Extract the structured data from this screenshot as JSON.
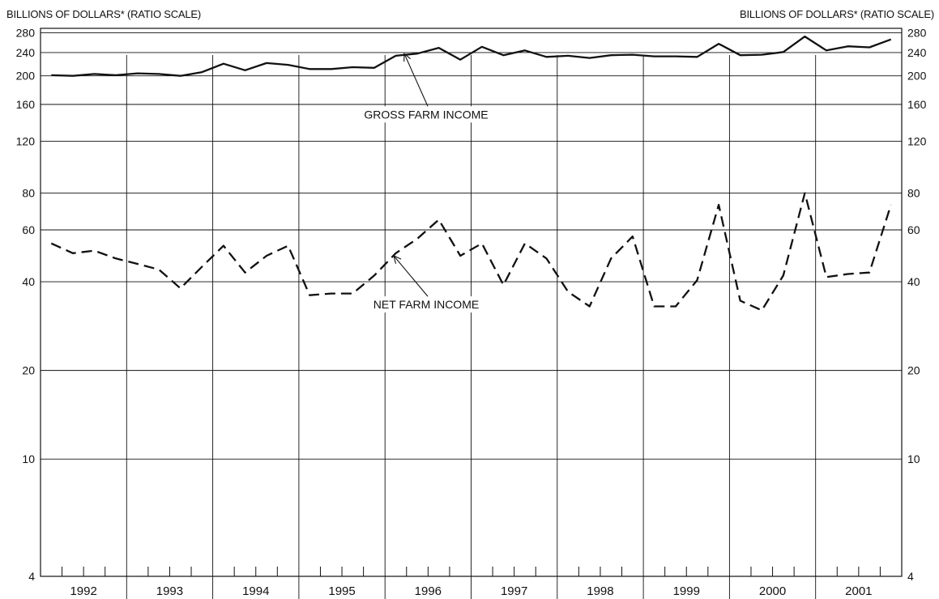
{
  "chart_data": {
    "type": "line",
    "scale": "log",
    "left_axis_title": "BILLIONS OF DOLLARS* (RATIO SCALE)",
    "right_axis_title": "BILLIONS OF DOLLARS* (RATIO SCALE)",
    "ylim": [
      4,
      290
    ],
    "yticks": [
      4,
      10,
      20,
      40,
      60,
      80,
      120,
      160,
      200,
      240,
      280
    ],
    "years": [
      "1992",
      "1993",
      "1994",
      "1995",
      "1996",
      "1997",
      "1998",
      "1999",
      "2000",
      "2001"
    ],
    "quarters_per_year": 4,
    "grid": true,
    "series": [
      {
        "name": "GROSS FARM INCOME",
        "style": "solid",
        "values": [
          201,
          200,
          203,
          201,
          204,
          203,
          200,
          206,
          220,
          209,
          221,
          218,
          211,
          211,
          214,
          213,
          234,
          238,
          249,
          227,
          251,
          235,
          244,
          232,
          234,
          230,
          235,
          236,
          233,
          233,
          232,
          257,
          235,
          236,
          241,
          272,
          244,
          252,
          250,
          266
        ]
      },
      {
        "name": "NET FARM INCOME",
        "style": "dashed",
        "values": [
          54,
          50,
          51,
          48,
          46,
          44,
          38,
          45,
          53,
          43,
          49,
          53,
          36,
          36.5,
          36.5,
          42,
          50,
          56,
          65,
          49,
          54,
          39,
          54,
          48,
          37,
          33,
          48,
          57,
          33,
          33,
          40.5,
          73,
          34.5,
          32,
          42,
          80,
          41.5,
          42.5,
          43,
          73
        ]
      }
    ],
    "annotations": [
      "GROSS FARM INCOME",
      "NET FARM INCOME"
    ]
  }
}
